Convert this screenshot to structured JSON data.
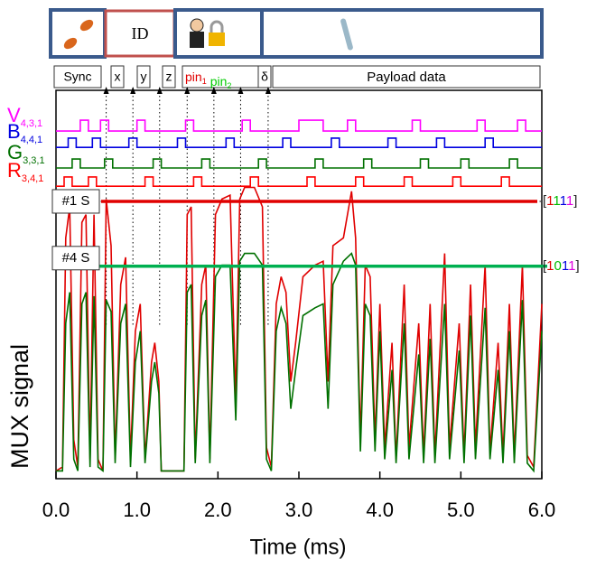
{
  "header": {
    "id_label": "ID",
    "fields": {
      "sync": "Sync",
      "x": "x",
      "y": "y",
      "z": "z",
      "pin1": {
        "text": "pin",
        "sub": "1",
        "color": "#e00000"
      },
      "pin2": {
        "text": "pin",
        "sub": "2",
        "color": "#00cc00"
      },
      "delta": "δ",
      "payload": "Payload data"
    }
  },
  "chart_data": {
    "type": "line",
    "x_label": "Time (ms)",
    "y_label": "MUX signal",
    "xlim": [
      0,
      6
    ],
    "ylim": [
      0,
      1
    ],
    "xticks": [
      {
        "value": 0,
        "label": "0.0"
      },
      {
        "value": 1,
        "label": "1.0"
      },
      {
        "value": 2,
        "label": "2.0"
      },
      {
        "value": 3,
        "label": "3.0"
      },
      {
        "value": 4,
        "label": "4.0"
      },
      {
        "value": 5,
        "label": "5.0"
      },
      {
        "value": 6,
        "label": "6.0"
      }
    ],
    "markers_x": [
      0.62,
      0.95,
      1.28,
      1.62,
      1.95,
      2.28,
      2.62
    ],
    "x": [
      0.0,
      0.08,
      0.12,
      0.17,
      0.22,
      0.27,
      0.32,
      0.37,
      0.42,
      0.47,
      0.52,
      0.58,
      0.62,
      0.68,
      0.73,
      0.8,
      0.86,
      0.92,
      0.98,
      1.04,
      1.1,
      1.18,
      1.22,
      1.27,
      1.3,
      1.5,
      1.58,
      1.62,
      1.67,
      1.72,
      1.8,
      1.85,
      1.9,
      1.97,
      2.05,
      2.15,
      2.22,
      2.27,
      2.33,
      2.45,
      2.55,
      2.6,
      2.66,
      2.72,
      2.78,
      2.84,
      2.9,
      2.96,
      3.05,
      3.2,
      3.3,
      3.36,
      3.42,
      3.55,
      3.65,
      3.7,
      3.76,
      3.82,
      3.88,
      3.94,
      4.0,
      4.06,
      4.15,
      4.2,
      4.3,
      4.36,
      4.48,
      4.54,
      4.62,
      4.68,
      4.8,
      4.86,
      4.98,
      5.04,
      5.12,
      5.18,
      5.3,
      5.36,
      5.46,
      5.52,
      5.6,
      5.66,
      5.76,
      5.82,
      5.9,
      6.0
    ],
    "series": [
      {
        "color": "#e00000",
        "values": [
          0.02,
          0.03,
          0.62,
          0.7,
          0.1,
          0.03,
          0.66,
          0.68,
          0.05,
          0.68,
          0.05,
          0.02,
          0.72,
          0.6,
          0.05,
          0.5,
          0.57,
          0.05,
          0.38,
          0.45,
          0.05,
          0.3,
          0.35,
          0.25,
          0.02,
          0.02,
          0.02,
          0.68,
          0.7,
          0.05,
          0.5,
          0.55,
          0.05,
          0.68,
          0.72,
          0.73,
          0.2,
          0.72,
          0.75,
          0.75,
          0.7,
          0.08,
          0.03,
          0.45,
          0.52,
          0.48,
          0.25,
          0.35,
          0.52,
          0.55,
          0.56,
          0.25,
          0.6,
          0.62,
          0.74,
          0.62,
          0.1,
          0.55,
          0.52,
          0.1,
          0.45,
          0.08,
          0.35,
          0.05,
          0.5,
          0.08,
          0.4,
          0.06,
          0.45,
          0.06,
          0.58,
          0.08,
          0.4,
          0.06,
          0.5,
          0.08,
          0.55,
          0.07,
          0.35,
          0.06,
          0.45,
          0.06,
          0.55,
          0.06,
          0.03,
          0.45
        ]
      },
      {
        "color": "#007000",
        "values": [
          0.02,
          0.02,
          0.4,
          0.48,
          0.05,
          0.02,
          0.45,
          0.48,
          0.03,
          0.47,
          0.03,
          0.02,
          0.46,
          0.43,
          0.04,
          0.4,
          0.45,
          0.03,
          0.3,
          0.38,
          0.04,
          0.25,
          0.3,
          0.22,
          0.02,
          0.02,
          0.02,
          0.48,
          0.5,
          0.04,
          0.42,
          0.46,
          0.04,
          0.52,
          0.55,
          0.55,
          0.15,
          0.56,
          0.58,
          0.58,
          0.55,
          0.05,
          0.02,
          0.38,
          0.44,
          0.4,
          0.18,
          0.28,
          0.42,
          0.44,
          0.45,
          0.18,
          0.5,
          0.56,
          0.58,
          0.55,
          0.07,
          0.45,
          0.42,
          0.07,
          0.38,
          0.05,
          0.28,
          0.04,
          0.4,
          0.05,
          0.32,
          0.04,
          0.36,
          0.04,
          0.45,
          0.05,
          0.33,
          0.04,
          0.42,
          0.05,
          0.44,
          0.05,
          0.28,
          0.04,
          0.38,
          0.04,
          0.46,
          0.04,
          0.02,
          0.38
        ]
      }
    ],
    "digital_traces": [
      {
        "name": "V",
        "subscript": "4,3,1",
        "color": "#ff00ff",
        "x": [
          0,
          0.3,
          0.3,
          0.4,
          0.4,
          0.55,
          0.55,
          0.65,
          0.65,
          1.0,
          1.0,
          1.1,
          1.1,
          1.6,
          1.6,
          1.7,
          1.7,
          2.3,
          2.3,
          2.4,
          2.4,
          3.0,
          3.0,
          3.3,
          3.3,
          3.6,
          3.6,
          3.7,
          3.7,
          4.4,
          4.4,
          4.5,
          4.5,
          5.2,
          5.2,
          5.3,
          5.3,
          5.7,
          5.7,
          5.8,
          5.8,
          6.0
        ],
        "values": [
          0.895,
          0.895,
          0.923,
          0.923,
          0.895,
          0.895,
          0.923,
          0.923,
          0.895,
          0.895,
          0.923,
          0.923,
          0.895,
          0.895,
          0.923,
          0.923,
          0.895,
          0.895,
          0.923,
          0.923,
          0.895,
          0.895,
          0.923,
          0.923,
          0.895,
          0.895,
          0.923,
          0.923,
          0.895,
          0.895,
          0.923,
          0.923,
          0.895,
          0.895,
          0.923,
          0.923,
          0.895,
          0.895,
          0.923,
          0.923,
          0.895,
          0.895
        ]
      },
      {
        "name": "B",
        "subscript": "4,4,1",
        "color": "#0000e0",
        "x": [
          0,
          0.15,
          0.15,
          0.25,
          0.25,
          0.45,
          0.45,
          0.55,
          0.55,
          0.9,
          0.9,
          1.0,
          1.0,
          1.5,
          1.5,
          1.6,
          1.6,
          2.1,
          2.1,
          2.2,
          2.2,
          2.8,
          2.8,
          2.9,
          2.9,
          3.4,
          3.4,
          3.5,
          3.5,
          4.1,
          4.1,
          4.2,
          4.2,
          4.7,
          4.7,
          4.8,
          4.8,
          5.3,
          5.3,
          5.4,
          5.4,
          6.0
        ],
        "values": [
          0.853,
          0.853,
          0.877,
          0.877,
          0.853,
          0.853,
          0.877,
          0.877,
          0.853,
          0.853,
          0.877,
          0.877,
          0.853,
          0.853,
          0.877,
          0.877,
          0.853,
          0.853,
          0.877,
          0.877,
          0.853,
          0.853,
          0.877,
          0.877,
          0.853,
          0.853,
          0.877,
          0.877,
          0.853,
          0.853,
          0.877,
          0.877,
          0.853,
          0.853,
          0.877,
          0.877,
          0.853,
          0.853,
          0.877,
          0.877,
          0.853,
          0.853
        ]
      },
      {
        "name": "G",
        "subscript": "3,3,1",
        "color": "#007000",
        "x": [
          0,
          0.2,
          0.2,
          0.3,
          0.3,
          0.6,
          0.6,
          0.7,
          0.7,
          1.2,
          1.2,
          1.3,
          1.3,
          1.8,
          1.8,
          1.9,
          1.9,
          2.5,
          2.5,
          2.6,
          2.6,
          3.2,
          3.2,
          3.3,
          3.3,
          3.8,
          3.8,
          3.9,
          3.9,
          4.5,
          4.5,
          4.6,
          4.6,
          5.0,
          5.0,
          5.1,
          5.1,
          5.6,
          5.6,
          5.7,
          5.7,
          6.0
        ],
        "values": [
          0.8,
          0.8,
          0.823,
          0.823,
          0.8,
          0.8,
          0.823,
          0.823,
          0.8,
          0.8,
          0.823,
          0.823,
          0.8,
          0.8,
          0.823,
          0.823,
          0.8,
          0.8,
          0.823,
          0.823,
          0.8,
          0.8,
          0.823,
          0.823,
          0.8,
          0.8,
          0.823,
          0.823,
          0.8,
          0.8,
          0.823,
          0.823,
          0.8,
          0.8,
          0.823,
          0.823,
          0.8,
          0.8,
          0.823,
          0.823,
          0.8,
          0.8
        ]
      },
      {
        "name": "R",
        "subscript": "3,4,1",
        "color": "#ff0000",
        "x": [
          0,
          0.1,
          0.1,
          0.2,
          0.2,
          0.4,
          0.4,
          0.5,
          0.5,
          1.1,
          1.1,
          1.2,
          1.2,
          1.7,
          1.7,
          1.8,
          1.8,
          2.4,
          2.4,
          2.5,
          2.5,
          3.1,
          3.1,
          3.2,
          3.2,
          3.7,
          3.7,
          3.8,
          3.8,
          4.3,
          4.3,
          4.4,
          4.4,
          4.9,
          4.9,
          5.0,
          5.0,
          5.5,
          5.5,
          5.6,
          5.6,
          6.0
        ],
        "values": [
          0.753,
          0.753,
          0.777,
          0.777,
          0.753,
          0.753,
          0.777,
          0.777,
          0.753,
          0.753,
          0.777,
          0.777,
          0.753,
          0.753,
          0.777,
          0.777,
          0.753,
          0.753,
          0.777,
          0.777,
          0.753,
          0.753,
          0.777,
          0.777,
          0.753,
          0.753,
          0.777,
          0.777,
          0.753,
          0.753,
          0.777,
          0.777,
          0.753,
          0.753,
          0.777,
          0.777,
          0.753,
          0.753,
          0.777,
          0.777,
          0.753,
          0.753
        ]
      }
    ],
    "thresholds": [
      {
        "label": "#1 S",
        "value": 0.714,
        "color": "#e00000",
        "code": [
          "[",
          "1",
          "1",
          "1",
          "1",
          "]"
        ],
        "code_colors": [
          "#222222",
          "#e00000",
          "#00bb00",
          "#0000e0",
          "#e000e0",
          "#222222"
        ]
      },
      {
        "label": "#4 S",
        "value": 0.547,
        "color": "#00b050",
        "code": [
          "[",
          "1",
          "0",
          "1",
          "1",
          "]"
        ],
        "code_colors": [
          "#222222",
          "#e00000",
          "#00bb00",
          "#0000e0",
          "#e000e0",
          "#222222"
        ]
      }
    ]
  }
}
